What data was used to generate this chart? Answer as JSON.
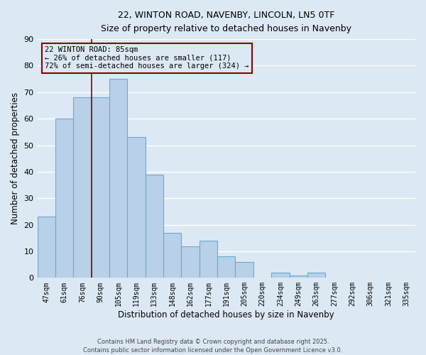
{
  "title1": "22, WINTON ROAD, NAVENBY, LINCOLN, LN5 0TF",
  "title2": "Size of property relative to detached houses in Navenby",
  "xlabel": "Distribution of detached houses by size in Navenby",
  "ylabel": "Number of detached properties",
  "categories": [
    "47sqm",
    "61sqm",
    "76sqm",
    "90sqm",
    "105sqm",
    "119sqm",
    "133sqm",
    "148sqm",
    "162sqm",
    "177sqm",
    "191sqm",
    "205sqm",
    "220sqm",
    "234sqm",
    "249sqm",
    "263sqm",
    "277sqm",
    "292sqm",
    "306sqm",
    "321sqm",
    "335sqm"
  ],
  "values": [
    23,
    60,
    68,
    68,
    75,
    53,
    39,
    17,
    12,
    14,
    8,
    6,
    0,
    2,
    1,
    2,
    0,
    0,
    0,
    0,
    0
  ],
  "bar_color": "#b8d0e8",
  "bar_edge_color": "#6aaad4",
  "background_color": "#dce9f5",
  "grid_color": "#ffffff",
  "annotation_text": "22 WINTON ROAD: 85sqm\n← 26% of detached houses are smaller (117)\n72% of semi-detached houses are larger (324) →",
  "red_line_x": 2.0,
  "footer": "Contains HM Land Registry data © Crown copyright and database right 2025.\nContains public sector information licensed under the Open Government Licence v3.0.",
  "ylim": [
    0,
    90
  ],
  "yticks": [
    0,
    10,
    20,
    30,
    40,
    50,
    60,
    70,
    80,
    90
  ]
}
